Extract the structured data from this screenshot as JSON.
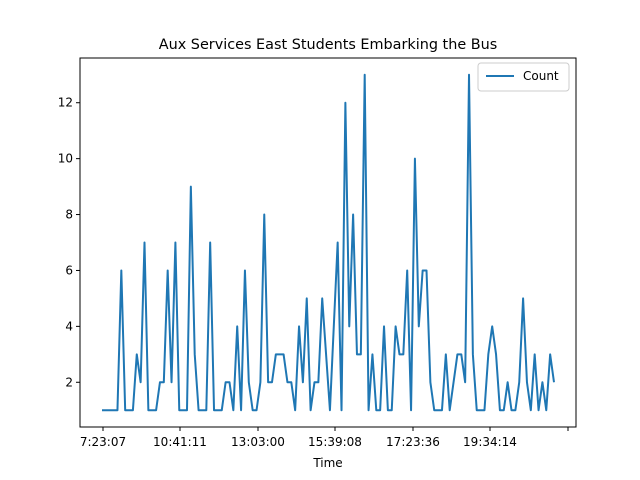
{
  "chart_data": {
    "type": "line",
    "title": "Aux Services East Students Embarking the Bus",
    "xlabel": "Time",
    "ylabel": "",
    "x_tick_labels": [
      "7:23:07",
      "10:41:11",
      "13:03:00",
      "15:39:08",
      "17:23:36",
      "19:34:14",
      ""
    ],
    "y_ticks": [
      2,
      4,
      6,
      8,
      10,
      12
    ],
    "ylim": [
      0.4,
      13.6
    ],
    "grid": false,
    "legend_position": "upper right",
    "series": [
      {
        "name": "Count",
        "color": "#1f77b4",
        "values": [
          1,
          1,
          1,
          1,
          1,
          6,
          1,
          1,
          1,
          3,
          2,
          7,
          1,
          1,
          1,
          2,
          2,
          6,
          2,
          7,
          1,
          1,
          1,
          9,
          3,
          1,
          1,
          1,
          7,
          1,
          1,
          1,
          2,
          2,
          1,
          4,
          1,
          6,
          2,
          1,
          1,
          2,
          8,
          2,
          2,
          3,
          3,
          3,
          2,
          2,
          1,
          4,
          2,
          5,
          1,
          2,
          2,
          5,
          3,
          1,
          4,
          7,
          1,
          12,
          4,
          8,
          3,
          3,
          13,
          1,
          3,
          1,
          1,
          4,
          1,
          1,
          4,
          3,
          3,
          6,
          1,
          10,
          4,
          6,
          6,
          2,
          1,
          1,
          1,
          3,
          1,
          2,
          3,
          3,
          2,
          13,
          3,
          1,
          1,
          1,
          3,
          4,
          3,
          1,
          1,
          2,
          1,
          1,
          2,
          5,
          2,
          1,
          3,
          1,
          2,
          1,
          3,
          2
        ]
      }
    ]
  }
}
